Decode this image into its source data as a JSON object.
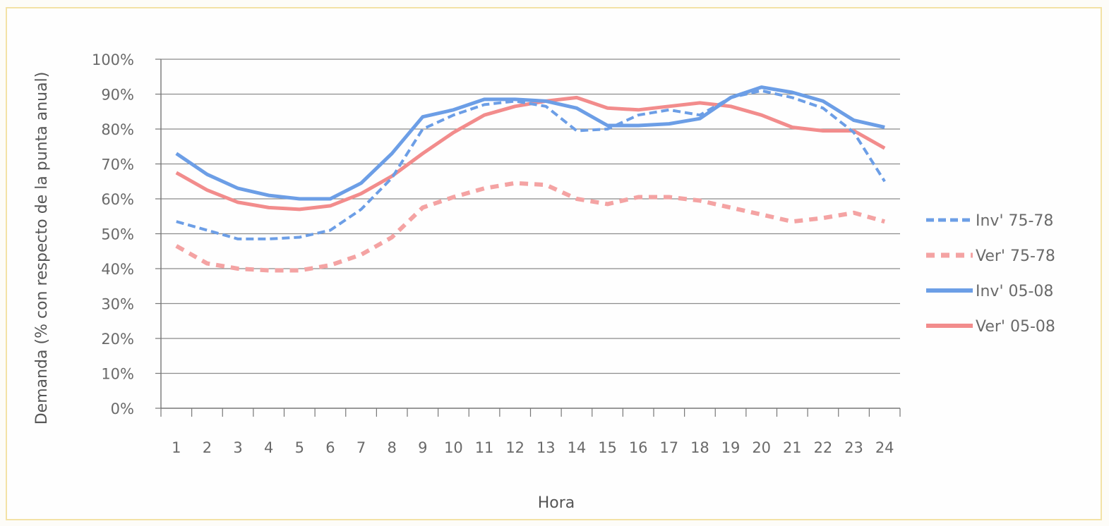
{
  "chart_data": {
    "type": "line",
    "xlabel": "Hora",
    "ylabel": "Demanda (% con respecto de la punta anual)",
    "x": [
      1,
      2,
      3,
      4,
      5,
      6,
      7,
      8,
      9,
      10,
      11,
      12,
      13,
      14,
      15,
      16,
      17,
      18,
      19,
      20,
      21,
      22,
      23,
      24
    ],
    "ylim": [
      0,
      100
    ],
    "yticks": [
      "0%",
      "10%",
      "20%",
      "30%",
      "40%",
      "50%",
      "60%",
      "70%",
      "80%",
      "90%",
      "100%"
    ],
    "xticks": [
      "1",
      "2",
      "3",
      "4",
      "5",
      "6",
      "7",
      "8",
      "9",
      "10",
      "11",
      "12",
      "13",
      "14",
      "15",
      "16",
      "17",
      "18",
      "19",
      "20",
      "21",
      "22",
      "23",
      "24"
    ],
    "grid": true,
    "legend_position": "right",
    "series": [
      {
        "name": "Inv' 75-78",
        "color": "#6c9ee6",
        "style": "dashed-thin",
        "values": [
          53.5,
          51,
          48.5,
          48.5,
          49,
          51,
          57,
          66,
          80,
          84,
          87,
          88,
          86.5,
          79.5,
          80,
          84,
          85.5,
          84,
          89,
          91,
          89,
          86,
          79,
          65
        ]
      },
      {
        "name": "Ver' 75-78",
        "color": "#f4a3a3",
        "style": "dashed-thick",
        "values": [
          46.5,
          41.5,
          40,
          39.5,
          39.5,
          41,
          44,
          49,
          57.5,
          60.5,
          63,
          64.5,
          64,
          60,
          58.5,
          60.5,
          60.5,
          59.5,
          57.5,
          55.5,
          53.5,
          54.5,
          56,
          53.5
        ]
      },
      {
        "name": "Inv' 05-08",
        "color": "#6c9ee6",
        "style": "solid",
        "values": [
          73,
          67,
          63,
          61,
          60,
          60,
          64.5,
          73,
          83.5,
          85.5,
          88.5,
          88.5,
          88,
          86,
          81,
          81,
          81.5,
          83,
          89,
          92,
          90.5,
          88,
          82.5,
          80.5
        ]
      },
      {
        "name": "Ver' 05-08",
        "color": "#f28c8c",
        "style": "solid",
        "values": [
          67.5,
          62.5,
          59,
          57.5,
          57,
          58,
          61.5,
          66.5,
          73,
          79,
          84,
          86.5,
          88,
          89,
          86,
          85.5,
          86.5,
          87.5,
          86.5,
          84,
          80.5,
          79.5,
          79.5,
          74.5
        ]
      }
    ]
  }
}
